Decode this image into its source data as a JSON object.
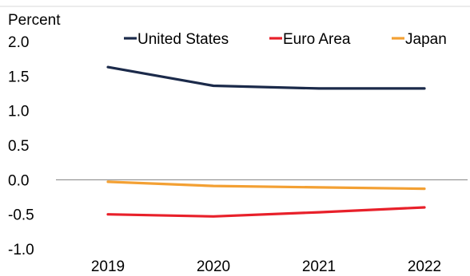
{
  "chart_data": {
    "type": "line",
    "unit_label": "Percent",
    "categories": [
      "2019",
      "2020",
      "2021",
      "2022"
    ],
    "ylim": [
      -1.0,
      2.0
    ],
    "yticks": [
      "2.0",
      "1.5",
      "1.0",
      "0.5",
      "0.0",
      "-0.5",
      "-1.0"
    ],
    "ytick_values": [
      2.0,
      1.5,
      1.0,
      0.5,
      0.0,
      -0.5,
      -1.0
    ],
    "grid": false,
    "zero_line": true,
    "legend_position": "top",
    "series": [
      {
        "name": "United States",
        "color": "#1b2a4a",
        "values": [
          1.63,
          1.36,
          1.32,
          1.32
        ]
      },
      {
        "name": "Euro Area",
        "color": "#e8202a",
        "values": [
          -0.5,
          -0.53,
          -0.47,
          -0.4
        ]
      },
      {
        "name": "Japan",
        "color": "#f3a033",
        "values": [
          -0.03,
          -0.09,
          -0.11,
          -0.13
        ]
      }
    ]
  }
}
